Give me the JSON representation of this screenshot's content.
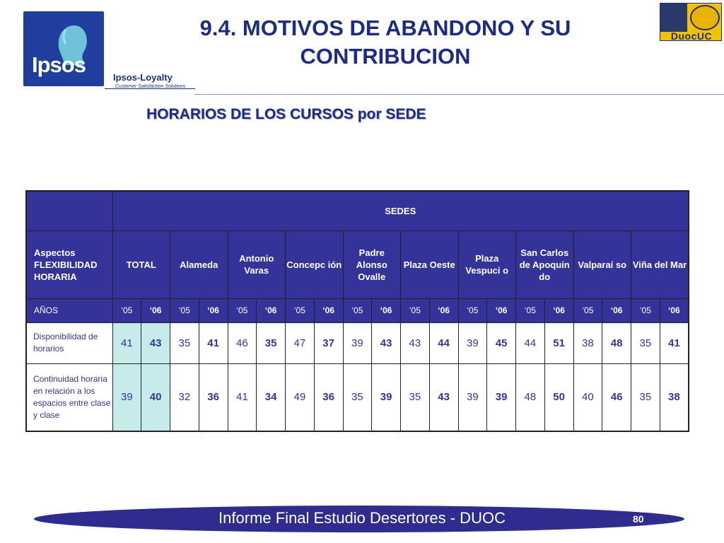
{
  "header": {
    "brand": "Ipsos",
    "loyalty": "Ipsos-Loyalty",
    "loyalty_sub": "Customer Satisfaction Solutions",
    "partner_logo_text": "DuocUC",
    "title_line1": "9.4. MOTIVOS DE ABANDONO Y SU",
    "title_line2": "CONTRIBUCION"
  },
  "subtitle": "HORARIOS DE LOS CURSOS por SEDE",
  "table": {
    "sedes_label": "SEDES",
    "aspect_label": "Aspectos FLEXIBILIDAD HORARIA",
    "years_label": "AÑOS",
    "columns": [
      "TOTAL",
      "Alameda",
      "Antonio Varas",
      "Concepc ión",
      "Padre Alonso Ovalle",
      "Plaza Oeste",
      "Plaza Vespuci o",
      "San Carlos de Apoquin do",
      "Valparaí so",
      "Viña del Mar"
    ],
    "year_a": "‘05",
    "year_b": "‘06",
    "rows": [
      {
        "label": "Disponibilidad de horarios",
        "values": [
          "41",
          "43",
          "35",
          "41",
          "46",
          "35",
          "47",
          "37",
          "39",
          "43",
          "43",
          "44",
          "39",
          "45",
          "44",
          "51",
          "38",
          "48",
          "35",
          "41"
        ]
      },
      {
        "label": "Continuidad horaria en relación a los espacios entre clase y clase",
        "values": [
          "39",
          "40",
          "32",
          "36",
          "41",
          "34",
          "49",
          "36",
          "35",
          "39",
          "35",
          "43",
          "39",
          "39",
          "48",
          "50",
          "40",
          "46",
          "35",
          "38"
        ]
      }
    ]
  },
  "footer": {
    "text": "Informe Final Estudio Desertores - DUOC",
    "page": "80"
  },
  "colors": {
    "primary": "#333399",
    "total_highlight": "#c7ebeb",
    "footer": "#2e2c8f"
  }
}
